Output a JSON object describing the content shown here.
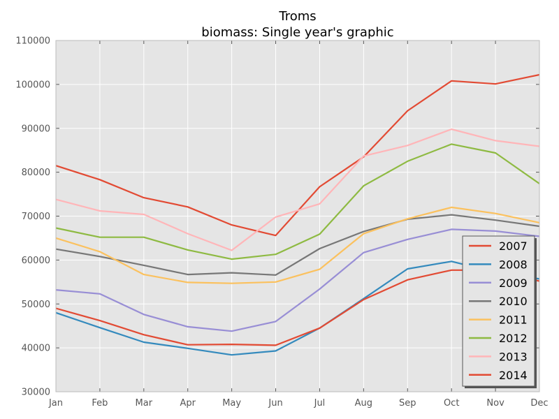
{
  "chart_data": {
    "type": "line",
    "title": "Troms",
    "subtitle": "biomass: Single year's graphic",
    "xlabel": "",
    "ylabel": "",
    "categories": [
      "Jan",
      "Feb",
      "Mar",
      "Apr",
      "May",
      "Jun",
      "Jul",
      "Aug",
      "Sep",
      "Oct",
      "Nov",
      "Dec"
    ],
    "ylim": [
      30000,
      110000
    ],
    "yticks": [
      "30000",
      "40000",
      "50000",
      "60000",
      "70000",
      "80000",
      "90000",
      "100000",
      "110000"
    ],
    "grid": true,
    "background": "#e5e5e5",
    "legend_position": "lower-right",
    "series": [
      {
        "name": "2007",
        "color": "#e24a33",
        "values": [
          81500,
          78300,
          74200,
          72100,
          68000,
          65600,
          76700,
          83500,
          94000,
          100800,
          100100,
          102200
        ]
      },
      {
        "name": "2008",
        "color": "#348abd",
        "values": [
          48000,
          44600,
          41300,
          39900,
          38400,
          39300,
          44500,
          51200,
          58000,
          59700,
          57200,
          55700
        ]
      },
      {
        "name": "2009",
        "color": "#988ed5",
        "values": [
          53200,
          52300,
          47600,
          44800,
          43800,
          46000,
          53400,
          61700,
          64700,
          67000,
          66600,
          65400
        ]
      },
      {
        "name": "2010",
        "color": "#777777",
        "values": [
          62500,
          60800,
          58800,
          56700,
          57100,
          56600,
          62600,
          66500,
          69300,
          70300,
          69100,
          67700
        ]
      },
      {
        "name": "2011",
        "color": "#fbc15e",
        "values": [
          65000,
          61900,
          56700,
          54900,
          54700,
          55000,
          57900,
          66000,
          69400,
          72000,
          70600,
          68500
        ]
      },
      {
        "name": "2012",
        "color": "#8eba42",
        "values": [
          67300,
          65200,
          65200,
          62300,
          60200,
          61300,
          65900,
          76900,
          82500,
          86400,
          84400,
          77400
        ]
      },
      {
        "name": "2013",
        "color": "#ffb5b8",
        "values": [
          73800,
          71200,
          70400,
          66000,
          62200,
          69800,
          72800,
          83700,
          86100,
          89800,
          87200,
          85900
        ]
      },
      {
        "name": "2014",
        "color": "#e24a33",
        "values": [
          49000,
          46200,
          43000,
          40700,
          40800,
          40600,
          44500,
          51000,
          55500,
          57700,
          57700,
          55200
        ]
      }
    ]
  }
}
